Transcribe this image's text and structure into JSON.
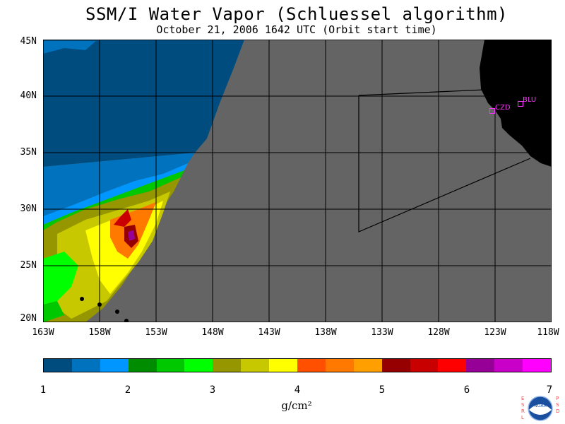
{
  "title": "SSM/I Water Vapor (Schluessel algorithm)",
  "subtitle": "October 21, 2006  1642 UTC  (Orbit start time)",
  "lat_labels": [
    "45N",
    "40N",
    "35N",
    "30N",
    "25N",
    "20N"
  ],
  "lon_labels": [
    "163W",
    "158W",
    "153W",
    "148W",
    "143W",
    "138W",
    "133W",
    "128W",
    "123W",
    "118W"
  ],
  "colorbar": {
    "colors": [
      "#004c7f",
      "#0072be",
      "#0096ff",
      "#008c00",
      "#00c800",
      "#00ff00",
      "#969600",
      "#c8c800",
      "#ffff00",
      "#ff5000",
      "#ff7800",
      "#ffa000",
      "#960000",
      "#c80000",
      "#ff0000",
      "#960096",
      "#c800c8",
      "#ff00ff"
    ],
    "ticks": [
      "1",
      "2",
      "3",
      "4",
      "5",
      "6",
      "7"
    ],
    "units": "g/cm²"
  },
  "stations": [
    {
      "label": "CZD"
    },
    {
      "label": "BLU"
    }
  ],
  "logo": {
    "side_left": "ESRL",
    "side_right": "PSD",
    "center": "NOAA"
  },
  "colors": {
    "land": "#000000",
    "nodata": "#646464",
    "ocean_deep": "#004c7f"
  }
}
